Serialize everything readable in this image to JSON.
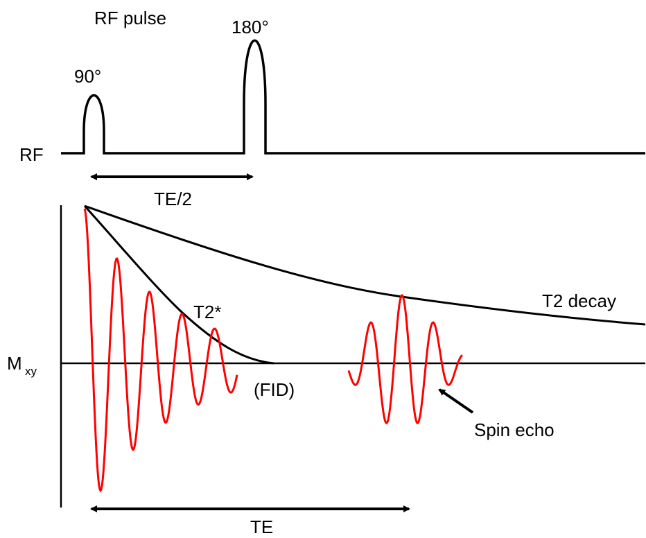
{
  "labels": {
    "rf_pulse": "RF pulse",
    "pulse_90": "90°",
    "pulse_180": "180°",
    "rf_axis": "RF",
    "te_half": "TE/2",
    "mxy_main": "M",
    "mxy_sub": "xy",
    "t2_star": "T2*",
    "t2_decay": "T2 decay",
    "fid": "(FID)",
    "spin_echo": "Spin echo",
    "te": "TE"
  },
  "colors": {
    "line": "#000000",
    "signal": "#ff0000"
  }
}
